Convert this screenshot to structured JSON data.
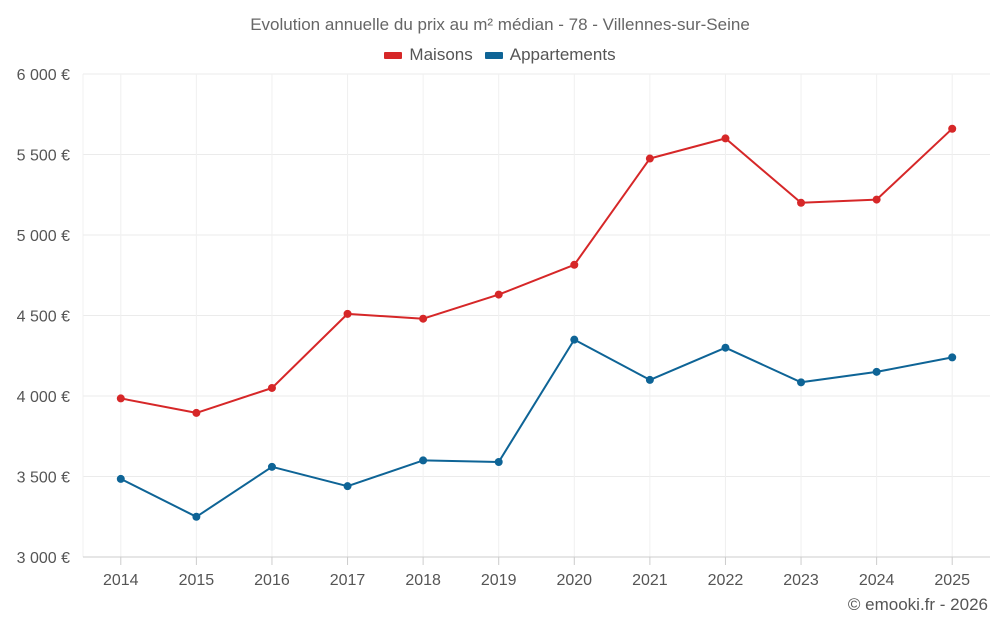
{
  "chart_data": {
    "type": "line",
    "title": "Evolution annuelle du prix au m² médian - 78 - Villennes-sur-Seine",
    "categories": [
      "2014",
      "2015",
      "2016",
      "2017",
      "2018",
      "2019",
      "2020",
      "2021",
      "2022",
      "2023",
      "2024",
      "2025"
    ],
    "series": [
      {
        "name": "Maisons",
        "color": "#d62728",
        "values": [
          3985,
          3895,
          4050,
          4510,
          4480,
          4630,
          4815,
          5475,
          5600,
          5200,
          5220,
          5660
        ]
      },
      {
        "name": "Appartements",
        "color": "#0e6496",
        "values": [
          3485,
          3250,
          3560,
          3440,
          3600,
          3590,
          4350,
          4100,
          4300,
          4085,
          4150,
          4240
        ]
      }
    ],
    "ylim": [
      3000,
      6000
    ],
    "yticks": [
      3000,
      3500,
      4000,
      4500,
      5000,
      5500,
      6000
    ],
    "ytick_labels": [
      "3 000 €",
      "3 500 €",
      "4 000 €",
      "4 500 €",
      "5 000 €",
      "5 500 €",
      "6 000 €"
    ],
    "grid": true,
    "legend_position": "top-center",
    "xlabel": "",
    "ylabel": ""
  },
  "credit": "© emooki.fr - 2026"
}
